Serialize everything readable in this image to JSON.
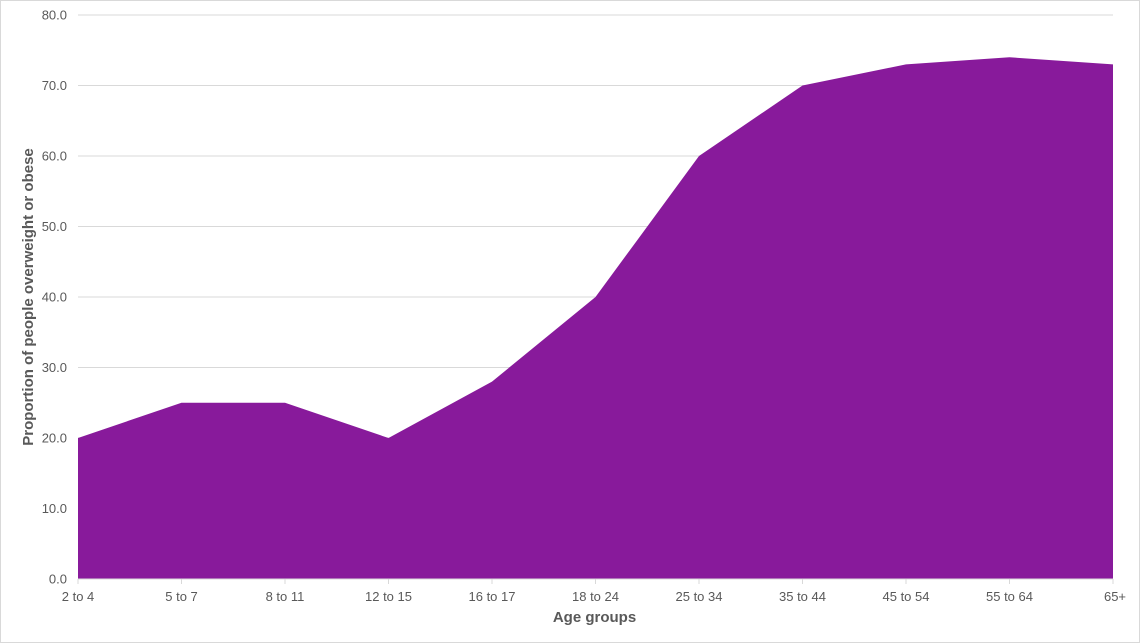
{
  "chart_data": {
    "type": "area",
    "title": "",
    "xlabel": "Age groups",
    "ylabel": "Proportion of people overweight or obese",
    "categories": [
      "2 to 4",
      "5 to 7",
      "8 to 11",
      "12 to 15",
      "16 to 17",
      "18 to 24",
      "25 to 34",
      "35 to 44",
      "45 to 54",
      "55 to 64",
      "65+"
    ],
    "values": [
      20,
      25,
      25,
      20,
      28,
      40,
      60,
      70,
      73,
      74,
      73
    ],
    "ylim": [
      0,
      80
    ],
    "yticks": [
      "0.0",
      "10.0",
      "20.0",
      "30.0",
      "40.0",
      "50.0",
      "60.0",
      "70.0",
      "80.0"
    ],
    "grid": true,
    "legend": "none",
    "colors": {
      "area": "#881A9B",
      "grid": "#D9D9D9",
      "text": "#595959"
    }
  }
}
